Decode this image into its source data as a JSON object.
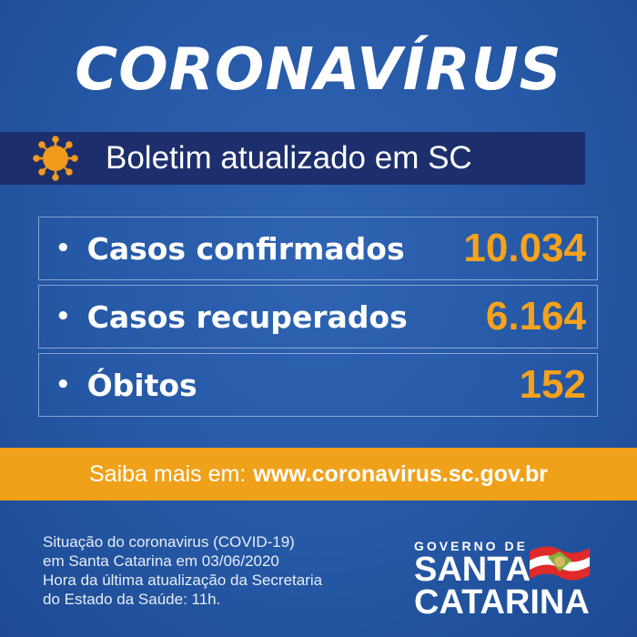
{
  "title": "CORONAVÍRUS",
  "banner": {
    "text": "Boletim atualizado em SC",
    "icon": "virus-icon"
  },
  "stats": [
    {
      "label": "Casos confirmados",
      "value": "10.034"
    },
    {
      "label": "Casos recuperados",
      "value": "6.164"
    },
    {
      "label": "Óbitos",
      "value": "152"
    }
  ],
  "info": {
    "prefix": "Saiba mais em:",
    "url": "www.coronavirus.sc.gov.br"
  },
  "footer": {
    "lines": [
      "Situação do coronavirus (COVID-19)",
      "em Santa Catarina em 03/06/2020",
      "Hora da última atualização da Secretaria",
      "do  Estado da Saúde: 11h."
    ]
  },
  "logo": {
    "top": "GOVERNO DE",
    "line1": "SANTA",
    "line2": "CATARINA"
  },
  "colors": {
    "background": "#2558a5",
    "banner": "#1c2f6c",
    "accent": "#f0a11a"
  }
}
